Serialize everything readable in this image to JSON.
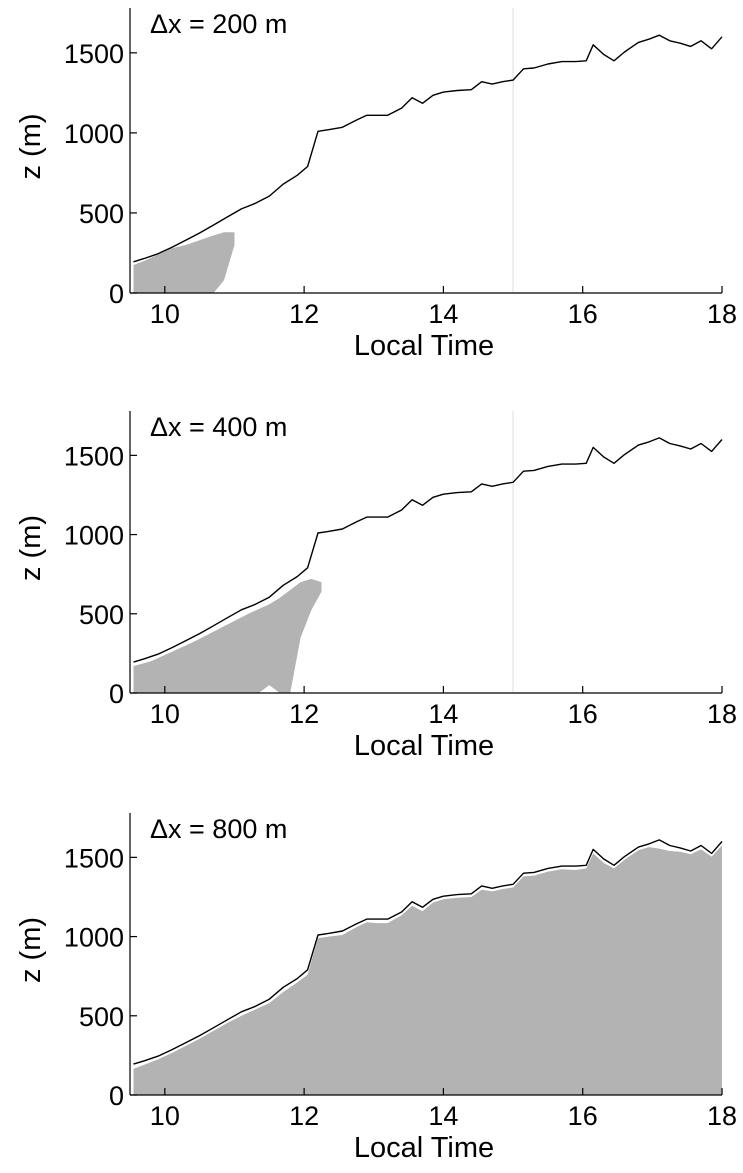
{
  "chart_data": [
    {
      "type": "area",
      "annotation": "Δx = 200 m",
      "xlabel": "Local Time",
      "ylabel": "z (m)",
      "xlim": [
        9.5,
        18
      ],
      "ylim": [
        0,
        1780
      ],
      "xticks": [
        10,
        12,
        14,
        16,
        18
      ],
      "yticks": [
        0,
        500,
        1000,
        1500
      ],
      "boundary_line": {
        "x": [
          9.55,
          9.7,
          9.9,
          10.1,
          10.3,
          10.5,
          10.7,
          10.9,
          11.1,
          11.3,
          11.5,
          11.7,
          11.9,
          12.05,
          12.2,
          12.35,
          12.55,
          12.75,
          12.9,
          13.05,
          13.2,
          13.4,
          13.55,
          13.7,
          13.85,
          14.0,
          14.2,
          14.4,
          14.55,
          14.7,
          14.85,
          15.0,
          15.15,
          15.3,
          15.5,
          15.7,
          15.9,
          16.05,
          16.15,
          16.3,
          16.45,
          16.6,
          16.8,
          16.95,
          17.1,
          17.25,
          17.4,
          17.55,
          17.7,
          17.85,
          18.0
        ],
        "z": [
          195,
          215,
          245,
          285,
          330,
          375,
          425,
          475,
          525,
          560,
          605,
          680,
          735,
          790,
          1010,
          1020,
          1035,
          1080,
          1110,
          1110,
          1110,
          1155,
          1220,
          1185,
          1235,
          1255,
          1265,
          1270,
          1320,
          1305,
          1320,
          1330,
          1400,
          1405,
          1430,
          1445,
          1445,
          1450,
          1550,
          1490,
          1450,
          1505,
          1565,
          1585,
          1610,
          1575,
          1560,
          1540,
          1575,
          1525,
          1600
        ]
      },
      "shaded_region": {
        "x": [
          9.55,
          9.7,
          9.9,
          10.1,
          10.3,
          10.5,
          10.7,
          10.85,
          11.0
        ],
        "z_top": [
          175,
          200,
          240,
          280,
          300,
          330,
          360,
          380,
          380
        ],
        "z_bottom": [
          0,
          0,
          0,
          0,
          0,
          0,
          0,
          80,
          300
        ]
      },
      "faint_vertical_line_x": 15.0
    },
    {
      "type": "area",
      "annotation": "Δx = 400 m",
      "xlabel": "Local Time",
      "ylabel": "z (m)",
      "xlim": [
        9.5,
        18
      ],
      "ylim": [
        0,
        1780
      ],
      "xticks": [
        10,
        12,
        14,
        16,
        18
      ],
      "yticks": [
        0,
        500,
        1000,
        1500
      ],
      "boundary_line": {
        "x": [
          9.55,
          9.7,
          9.9,
          10.1,
          10.3,
          10.5,
          10.7,
          10.9,
          11.1,
          11.3,
          11.5,
          11.7,
          11.9,
          12.05,
          12.2,
          12.35,
          12.55,
          12.75,
          12.9,
          13.05,
          13.2,
          13.4,
          13.55,
          13.7,
          13.85,
          14.0,
          14.2,
          14.4,
          14.55,
          14.7,
          14.85,
          15.0,
          15.15,
          15.3,
          15.5,
          15.7,
          15.9,
          16.05,
          16.15,
          16.3,
          16.45,
          16.6,
          16.8,
          16.95,
          17.1,
          17.25,
          17.4,
          17.55,
          17.7,
          17.85,
          18.0
        ],
        "z": [
          195,
          215,
          245,
          285,
          330,
          375,
          425,
          475,
          525,
          560,
          605,
          680,
          735,
          790,
          1010,
          1020,
          1035,
          1080,
          1110,
          1110,
          1110,
          1155,
          1220,
          1185,
          1235,
          1255,
          1265,
          1270,
          1320,
          1305,
          1320,
          1330,
          1400,
          1405,
          1430,
          1445,
          1445,
          1450,
          1550,
          1490,
          1450,
          1505,
          1565,
          1585,
          1610,
          1575,
          1560,
          1540,
          1575,
          1525,
          1600
        ]
      },
      "shaded_region": {
        "x": [
          9.55,
          9.8,
          10.0,
          10.2,
          10.4,
          10.6,
          10.8,
          11.0,
          11.2,
          11.35,
          11.5,
          11.65,
          11.8,
          11.95,
          12.1,
          12.25
        ],
        "z_top": [
          170,
          200,
          240,
          280,
          320,
          365,
          410,
          455,
          500,
          530,
          560,
          600,
          650,
          700,
          720,
          700
        ],
        "z_bottom": [
          0,
          0,
          0,
          0,
          0,
          0,
          0,
          0,
          0,
          0,
          50,
          0,
          0,
          350,
          520,
          640
        ]
      },
      "faint_vertical_line_x": 15.0
    },
    {
      "type": "area",
      "annotation": "Δx = 800 m",
      "xlabel": "Local Time",
      "ylabel": "z (m)",
      "xlim": [
        9.5,
        18
      ],
      "ylim": [
        0,
        1780
      ],
      "xticks": [
        10,
        12,
        14,
        16,
        18
      ],
      "yticks": [
        0,
        500,
        1000,
        1500
      ],
      "boundary_line": {
        "x": [
          9.55,
          9.7,
          9.9,
          10.1,
          10.3,
          10.5,
          10.7,
          10.9,
          11.1,
          11.3,
          11.5,
          11.7,
          11.9,
          12.05,
          12.2,
          12.35,
          12.55,
          12.75,
          12.9,
          13.05,
          13.2,
          13.4,
          13.55,
          13.7,
          13.85,
          14.0,
          14.2,
          14.4,
          14.55,
          14.7,
          14.85,
          15.0,
          15.15,
          15.3,
          15.5,
          15.7,
          15.9,
          16.05,
          16.15,
          16.3,
          16.45,
          16.6,
          16.8,
          16.95,
          17.1,
          17.25,
          17.4,
          17.55,
          17.7,
          17.85,
          18.0
        ],
        "z": [
          195,
          215,
          245,
          285,
          330,
          375,
          425,
          475,
          525,
          560,
          605,
          680,
          735,
          790,
          1010,
          1020,
          1035,
          1080,
          1110,
          1110,
          1110,
          1155,
          1220,
          1185,
          1235,
          1255,
          1265,
          1270,
          1320,
          1305,
          1320,
          1330,
          1400,
          1405,
          1430,
          1445,
          1445,
          1450,
          1550,
          1490,
          1450,
          1505,
          1565,
          1585,
          1610,
          1575,
          1560,
          1540,
          1575,
          1525,
          1600
        ]
      },
      "shaded_region": {
        "x": [
          9.55,
          9.7,
          9.9,
          10.1,
          10.3,
          10.5,
          10.7,
          10.9,
          11.1,
          11.3,
          11.5,
          11.7,
          11.9,
          12.05,
          12.2,
          12.35,
          12.55,
          12.75,
          12.9,
          13.05,
          13.2,
          13.4,
          13.55,
          13.7,
          13.85,
          14.0,
          14.2,
          14.4,
          14.55,
          14.7,
          14.85,
          15.0,
          15.15,
          15.3,
          15.5,
          15.7,
          15.9,
          16.05,
          16.15,
          16.3,
          16.45,
          16.6,
          16.8,
          16.95,
          17.1,
          17.25,
          17.4,
          17.55,
          17.7,
          17.85,
          18.0
        ],
        "z_top": [
          165,
          190,
          225,
          265,
          310,
          355,
          405,
          455,
          500,
          540,
          580,
          650,
          710,
          760,
          990,
          1000,
          1010,
          1060,
          1090,
          1085,
          1085,
          1135,
          1195,
          1160,
          1215,
          1235,
          1245,
          1250,
          1295,
          1285,
          1300,
          1310,
          1380,
          1385,
          1410,
          1425,
          1420,
          1430,
          1525,
          1465,
          1430,
          1485,
          1545,
          1565,
          1555,
          1540,
          1535,
          1520,
          1550,
          1505,
          1575
        ],
        "z_bottom": [
          0,
          0,
          0,
          0,
          0,
          0,
          0,
          0,
          0,
          0,
          0,
          0,
          0,
          0,
          0,
          0,
          0,
          0,
          0,
          0,
          0,
          0,
          0,
          0,
          0,
          0,
          0,
          0,
          0,
          0,
          0,
          0,
          0,
          0,
          0,
          0,
          0,
          0,
          0,
          0,
          0,
          0,
          0,
          0,
          0,
          0,
          0,
          0,
          0,
          0,
          0
        ]
      },
      "faint_vertical_line_x": null
    }
  ],
  "colors": {
    "shade": "#b3b3b3",
    "line": "#000000",
    "faint_line": "#dddddd",
    "axis": "#000000"
  }
}
